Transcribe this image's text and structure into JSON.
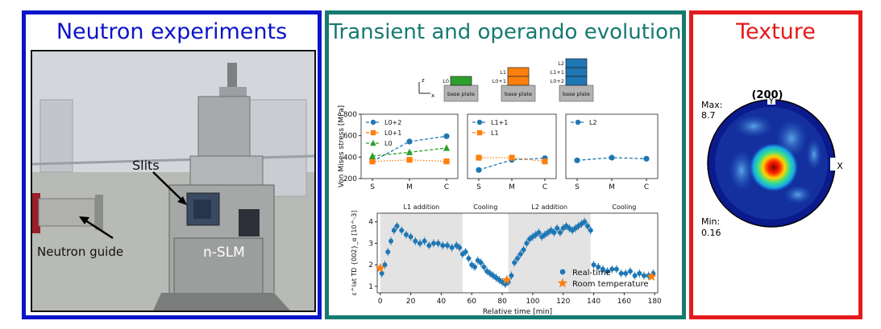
{
  "panels": {
    "left": {
      "title": "Neutron experiments",
      "color": "#0b14c8",
      "labels": {
        "slits": "Slits",
        "guide": "Neutron guide",
        "machine": "n-SLM"
      }
    },
    "middle": {
      "title": "Transient and operando evolution",
      "color": "#157a70"
    },
    "right": {
      "title": "Texture",
      "color": "#e41a1c"
    }
  },
  "schematic": {
    "axes": {
      "z": "z",
      "x": "x"
    },
    "base_label": "base plate",
    "layers": [
      {
        "labels": [
          "L0"
        ],
        "colors": [
          "#2ca02c"
        ]
      },
      {
        "labels": [
          "L1",
          "L0+1"
        ],
        "colors": [
          "#ff7f0e",
          "#ff7f0e"
        ]
      },
      {
        "labels": [
          "L2",
          "L1+1",
          "L0+2"
        ],
        "colors": [
          "#1f77b4",
          "#1f77b4",
          "#1f77b4"
        ]
      }
    ]
  },
  "chart_data": [
    {
      "type": "line",
      "ylabel": "Von Mises stress [MPa]",
      "ylim": [
        200,
        800
      ],
      "yticks": [
        200,
        400,
        600,
        800
      ],
      "grid": false,
      "subplots": [
        {
          "categories": [
            "S",
            "M",
            "C"
          ],
          "legend": "top-left",
          "series": [
            {
              "name": "L0+2",
              "color": "#1f77b4",
              "marker": "circle",
              "values": [
                360,
                545,
                595
              ]
            },
            {
              "name": "L0+1",
              "color": "#ff7f0e",
              "marker": "square",
              "values": [
                360,
                375,
                360
              ]
            },
            {
              "name": "L0",
              "color": "#2ca02c",
              "marker": "triangle",
              "values": [
                410,
                445,
                485
              ]
            }
          ]
        },
        {
          "categories": [
            "S",
            "M",
            "C"
          ],
          "legend": "top-left",
          "series": [
            {
              "name": "L1+1",
              "color": "#1f77b4",
              "marker": "circle",
              "values": [
                280,
                375,
                390
              ]
            },
            {
              "name": "L1",
              "color": "#ff7f0e",
              "marker": "square",
              "values": [
                395,
                395,
                360
              ]
            }
          ]
        },
        {
          "categories": [
            "S",
            "M",
            "C"
          ],
          "legend": "top-left",
          "series": [
            {
              "name": "L2",
              "color": "#1f77b4",
              "marker": "circle",
              "values": [
                370,
                395,
                385
              ]
            }
          ]
        }
      ]
    },
    {
      "type": "scatter",
      "xlabel": "Relative time [min]",
      "ylabel": "ε^lat TD {002}_α [10^-3]",
      "xlim": [
        -2,
        182
      ],
      "ylim": [
        0.7,
        4.4
      ],
      "xticks": [
        0,
        20,
        40,
        60,
        80,
        100,
        120,
        140,
        160,
        180
      ],
      "yticks": [
        1,
        2,
        3,
        4
      ],
      "grid": false,
      "legend": "bottom-right",
      "phases": [
        {
          "label": "L1 addition",
          "start": 0,
          "end": 54,
          "shaded": true
        },
        {
          "label": "Cooling",
          "start": 54,
          "end": 84,
          "shaded": false
        },
        {
          "label": "L2 addition",
          "start": 84,
          "end": 138,
          "shaded": true
        },
        {
          "label": "Cooling",
          "start": 138,
          "end": 182,
          "shaded": false
        }
      ],
      "series": [
        {
          "name": "Real-time",
          "color": "#1f77b4",
          "marker": "circle",
          "x": [
            1,
            3,
            5,
            7,
            9,
            11,
            14,
            17,
            20,
            23,
            26,
            29,
            32,
            35,
            38,
            41,
            44,
            47,
            50,
            52,
            54,
            56,
            58,
            60,
            62,
            64,
            66,
            68,
            70,
            72,
            74,
            76,
            78,
            80,
            82,
            84,
            86,
            88,
            90,
            92,
            94,
            96,
            98,
            100,
            102,
            104,
            106,
            108,
            110,
            112,
            114,
            116,
            118,
            120,
            122,
            124,
            126,
            128,
            130,
            132,
            134,
            136,
            138,
            140,
            143,
            146,
            149,
            152,
            155,
            158,
            161,
            164,
            167,
            170,
            173,
            176,
            179
          ],
          "y": [
            1.6,
            2.0,
            2.6,
            3.1,
            3.6,
            3.8,
            3.6,
            3.4,
            3.3,
            3.1,
            3.0,
            3.1,
            2.9,
            3.0,
            3.0,
            2.9,
            2.9,
            2.8,
            2.9,
            2.8,
            2.5,
            2.6,
            2.3,
            2.0,
            1.9,
            2.2,
            2.1,
            1.9,
            1.7,
            1.6,
            1.5,
            1.4,
            1.3,
            1.2,
            1.1,
            1.2,
            1.5,
            2.1,
            2.3,
            2.5,
            2.7,
            3.0,
            3.2,
            3.3,
            3.4,
            3.5,
            3.3,
            3.4,
            3.5,
            3.6,
            3.5,
            3.7,
            3.5,
            3.7,
            3.8,
            3.7,
            3.6,
            3.7,
            3.8,
            3.9,
            4.0,
            3.8,
            3.6,
            2.0,
            1.9,
            1.8,
            1.7,
            1.8,
            1.8,
            1.6,
            1.6,
            1.7,
            1.5,
            1.6,
            1.5,
            1.5,
            1.6
          ]
        },
        {
          "name": "Room temperature",
          "color": "#ff7f0e",
          "marker": "star",
          "x": [
            0,
            83,
            178
          ],
          "y": [
            1.85,
            1.3,
            1.45
          ]
        }
      ]
    }
  ],
  "pole_figure": {
    "title": "(200)",
    "max_label": "Max:",
    "max_value": "8.7",
    "min_label": "Min:",
    "min_value": "0.16",
    "axis_y": "Y",
    "axis_x": "X"
  }
}
